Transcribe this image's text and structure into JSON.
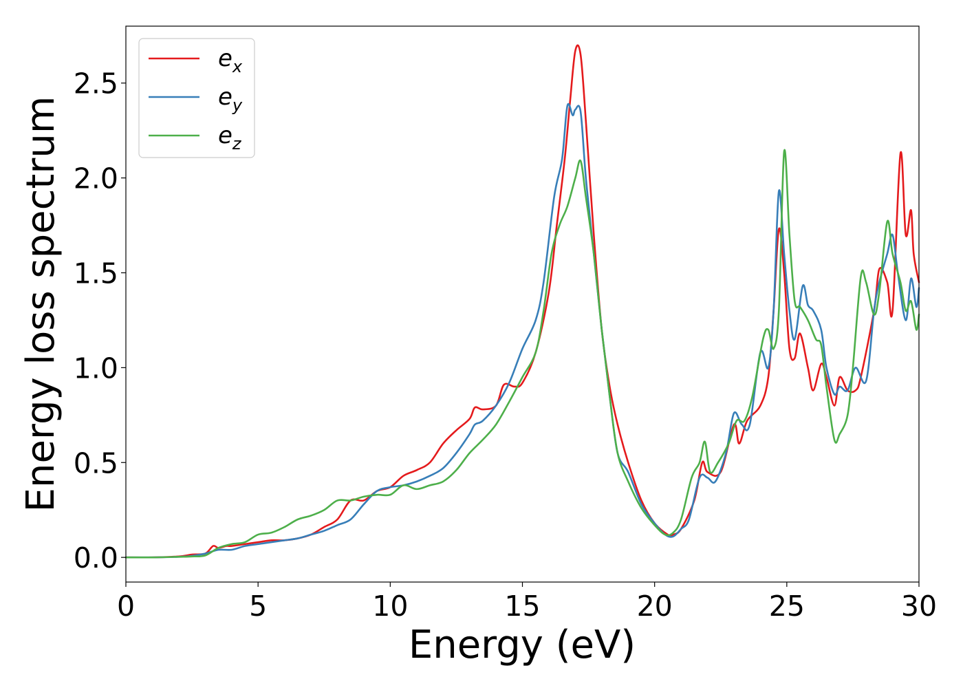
{
  "chart_data": {
    "type": "line",
    "title": "",
    "xlabel": "Energy (eV)",
    "ylabel": "Energy loss spectrum",
    "xlim": [
      0,
      30
    ],
    "ylim": [
      -0.13,
      2.8
    ],
    "xticks": [
      0,
      5,
      10,
      15,
      20,
      25,
      30
    ],
    "xtick_labels": [
      "0",
      "5",
      "10",
      "15",
      "20",
      "25",
      "30"
    ],
    "yticks": [
      0.0,
      0.5,
      1.0,
      1.5,
      2.0,
      2.5
    ],
    "ytick_labels": [
      "0.0",
      "0.5",
      "1.0",
      "1.5",
      "2.0",
      "2.5"
    ],
    "grid": false,
    "legend_position": "top-left",
    "series": [
      {
        "name": "e_x",
        "label_base": "e",
        "label_sub": "x",
        "color": "#e41a1c",
        "points": [
          [
            0,
            0
          ],
          [
            1,
            0
          ],
          [
            2,
            0.005
          ],
          [
            2.5,
            0.015
          ],
          [
            3,
            0.02
          ],
          [
            3.3,
            0.06
          ],
          [
            3.5,
            0.05
          ],
          [
            3.8,
            0.06
          ],
          [
            4,
            0.06
          ],
          [
            4.5,
            0.07
          ],
          [
            5,
            0.08
          ],
          [
            5.5,
            0.09
          ],
          [
            6,
            0.09
          ],
          [
            6.5,
            0.1
          ],
          [
            7,
            0.12
          ],
          [
            7.5,
            0.16
          ],
          [
            8,
            0.2
          ],
          [
            8.5,
            0.3
          ],
          [
            9,
            0.3
          ],
          [
            9.5,
            0.35
          ],
          [
            10,
            0.37
          ],
          [
            10.5,
            0.43
          ],
          [
            11,
            0.46
          ],
          [
            11.5,
            0.5
          ],
          [
            12,
            0.6
          ],
          [
            12.5,
            0.67
          ],
          [
            13,
            0.73
          ],
          [
            13.2,
            0.79
          ],
          [
            13.5,
            0.78
          ],
          [
            14,
            0.8
          ],
          [
            14.3,
            0.91
          ],
          [
            14.7,
            0.9
          ],
          [
            15,
            0.92
          ],
          [
            15.5,
            1.08
          ],
          [
            16,
            1.4
          ],
          [
            16.3,
            1.75
          ],
          [
            16.6,
            2.1
          ],
          [
            16.8,
            2.4
          ],
          [
            17,
            2.67
          ],
          [
            17.2,
            2.65
          ],
          [
            17.4,
            2.3
          ],
          [
            17.7,
            1.7
          ],
          [
            18,
            1.2
          ],
          [
            18.3,
            0.9
          ],
          [
            18.6,
            0.7
          ],
          [
            19,
            0.5
          ],
          [
            19.5,
            0.3
          ],
          [
            20,
            0.18
          ],
          [
            20.5,
            0.12
          ],
          [
            20.7,
            0.12
          ],
          [
            21,
            0.15
          ],
          [
            21.5,
            0.3
          ],
          [
            21.8,
            0.5
          ],
          [
            22,
            0.45
          ],
          [
            22.5,
            0.45
          ],
          [
            23,
            0.7
          ],
          [
            23.2,
            0.6
          ],
          [
            23.5,
            0.72
          ],
          [
            24,
            0.8
          ],
          [
            24.3,
            0.95
          ],
          [
            24.5,
            1.3
          ],
          [
            24.7,
            1.73
          ],
          [
            24.9,
            1.5
          ],
          [
            25.1,
            1.1
          ],
          [
            25.3,
            1.05
          ],
          [
            25.5,
            1.18
          ],
          [
            25.8,
            1.0
          ],
          [
            26,
            0.88
          ],
          [
            26.3,
            1.02
          ],
          [
            26.5,
            0.95
          ],
          [
            26.8,
            0.8
          ],
          [
            27,
            0.95
          ],
          [
            27.3,
            0.88
          ],
          [
            27.6,
            0.88
          ],
          [
            27.8,
            0.95
          ],
          [
            28.3,
            1.3
          ],
          [
            28.5,
            1.52
          ],
          [
            28.8,
            1.45
          ],
          [
            29,
            1.3
          ],
          [
            29.3,
            2.13
          ],
          [
            29.5,
            1.7
          ],
          [
            29.7,
            1.83
          ],
          [
            29.8,
            1.6
          ],
          [
            30,
            1.45
          ]
        ]
      },
      {
        "name": "e_y",
        "label_base": "e",
        "label_sub": "y",
        "color": "#377eb8",
        "points": [
          [
            0,
            0
          ],
          [
            1,
            0
          ],
          [
            2,
            0.003
          ],
          [
            2.5,
            0.008
          ],
          [
            3,
            0.02
          ],
          [
            3.5,
            0.04
          ],
          [
            4,
            0.04
          ],
          [
            4.5,
            0.06
          ],
          [
            5,
            0.07
          ],
          [
            5.5,
            0.08
          ],
          [
            6,
            0.09
          ],
          [
            6.5,
            0.1
          ],
          [
            7,
            0.12
          ],
          [
            7.5,
            0.14
          ],
          [
            8,
            0.17
          ],
          [
            8.5,
            0.2
          ],
          [
            9,
            0.28
          ],
          [
            9.5,
            0.35
          ],
          [
            10,
            0.37
          ],
          [
            10.5,
            0.38
          ],
          [
            11,
            0.4
          ],
          [
            11.5,
            0.43
          ],
          [
            12,
            0.47
          ],
          [
            12.5,
            0.55
          ],
          [
            13,
            0.65
          ],
          [
            13.2,
            0.7
          ],
          [
            13.5,
            0.72
          ],
          [
            14,
            0.8
          ],
          [
            14.5,
            0.92
          ],
          [
            15,
            1.1
          ],
          [
            15.5,
            1.25
          ],
          [
            15.8,
            1.45
          ],
          [
            16.2,
            1.9
          ],
          [
            16.5,
            2.1
          ],
          [
            16.7,
            2.38
          ],
          [
            16.9,
            2.33
          ],
          [
            17,
            2.36
          ],
          [
            17.2,
            2.35
          ],
          [
            17.4,
            2.0
          ],
          [
            17.7,
            1.6
          ],
          [
            18,
            1.2
          ],
          [
            18.3,
            0.85
          ],
          [
            18.6,
            0.55
          ],
          [
            19,
            0.45
          ],
          [
            19.5,
            0.28
          ],
          [
            20,
            0.18
          ],
          [
            20.4,
            0.12
          ],
          [
            20.7,
            0.11
          ],
          [
            21,
            0.15
          ],
          [
            21.3,
            0.2
          ],
          [
            21.7,
            0.42
          ],
          [
            22,
            0.42
          ],
          [
            22.3,
            0.4
          ],
          [
            22.7,
            0.55
          ],
          [
            23,
            0.76
          ],
          [
            23.3,
            0.7
          ],
          [
            23.6,
            0.7
          ],
          [
            24,
            1.08
          ],
          [
            24.3,
            1.0
          ],
          [
            24.5,
            1.3
          ],
          [
            24.7,
            1.93
          ],
          [
            24.9,
            1.6
          ],
          [
            25.1,
            1.3
          ],
          [
            25.3,
            1.15
          ],
          [
            25.6,
            1.43
          ],
          [
            25.8,
            1.33
          ],
          [
            26,
            1.3
          ],
          [
            26.3,
            1.2
          ],
          [
            26.5,
            1.0
          ],
          [
            26.8,
            0.86
          ],
          [
            27,
            0.9
          ],
          [
            27.3,
            0.88
          ],
          [
            27.6,
            1.0
          ],
          [
            28,
            0.93
          ],
          [
            28.3,
            1.3
          ],
          [
            28.5,
            1.45
          ],
          [
            28.8,
            1.6
          ],
          [
            29,
            1.7
          ],
          [
            29.2,
            1.5
          ],
          [
            29.5,
            1.25
          ],
          [
            29.7,
            1.47
          ],
          [
            29.9,
            1.32
          ],
          [
            30,
            1.42
          ]
        ]
      },
      {
        "name": "e_z",
        "label_base": "e",
        "label_sub": "z",
        "color": "#4daf4a",
        "points": [
          [
            0,
            0
          ],
          [
            1,
            0
          ],
          [
            2,
            0.003
          ],
          [
            2.5,
            0.005
          ],
          [
            3,
            0.01
          ],
          [
            3.5,
            0.05
          ],
          [
            4,
            0.07
          ],
          [
            4.5,
            0.08
          ],
          [
            5,
            0.12
          ],
          [
            5.5,
            0.13
          ],
          [
            6,
            0.16
          ],
          [
            6.5,
            0.2
          ],
          [
            7,
            0.22
          ],
          [
            7.5,
            0.25
          ],
          [
            8,
            0.3
          ],
          [
            8.5,
            0.3
          ],
          [
            9,
            0.32
          ],
          [
            9.5,
            0.33
          ],
          [
            10,
            0.33
          ],
          [
            10.5,
            0.38
          ],
          [
            11,
            0.36
          ],
          [
            11.5,
            0.38
          ],
          [
            12,
            0.4
          ],
          [
            12.5,
            0.46
          ],
          [
            13,
            0.55
          ],
          [
            13.5,
            0.62
          ],
          [
            14,
            0.7
          ],
          [
            14.5,
            0.82
          ],
          [
            15,
            0.95
          ],
          [
            15.5,
            1.08
          ],
          [
            15.8,
            1.3
          ],
          [
            16.1,
            1.6
          ],
          [
            16.4,
            1.75
          ],
          [
            16.7,
            1.85
          ],
          [
            17,
            2.0
          ],
          [
            17.2,
            2.09
          ],
          [
            17.4,
            1.9
          ],
          [
            17.7,
            1.6
          ],
          [
            18,
            1.2
          ],
          [
            18.3,
            0.85
          ],
          [
            18.6,
            0.55
          ],
          [
            19,
            0.4
          ],
          [
            19.5,
            0.26
          ],
          [
            20,
            0.17
          ],
          [
            20.4,
            0.12
          ],
          [
            20.7,
            0.13
          ],
          [
            21,
            0.2
          ],
          [
            21.4,
            0.42
          ],
          [
            21.7,
            0.5
          ],
          [
            21.9,
            0.61
          ],
          [
            22.1,
            0.45
          ],
          [
            22.4,
            0.5
          ],
          [
            22.8,
            0.6
          ],
          [
            23.1,
            0.72
          ],
          [
            23.4,
            0.72
          ],
          [
            23.7,
            0.85
          ],
          [
            24.1,
            1.15
          ],
          [
            24.3,
            1.2
          ],
          [
            24.5,
            1.1
          ],
          [
            24.7,
            1.3
          ],
          [
            24.9,
            2.14
          ],
          [
            25.1,
            1.7
          ],
          [
            25.3,
            1.35
          ],
          [
            25.5,
            1.32
          ],
          [
            25.8,
            1.25
          ],
          [
            26.1,
            1.15
          ],
          [
            26.3,
            1.12
          ],
          [
            26.5,
            0.9
          ],
          [
            26.8,
            0.62
          ],
          [
            27,
            0.65
          ],
          [
            27.3,
            0.75
          ],
          [
            27.5,
            1.0
          ],
          [
            27.8,
            1.48
          ],
          [
            28,
            1.45
          ],
          [
            28.3,
            1.28
          ],
          [
            28.5,
            1.4
          ],
          [
            28.8,
            1.77
          ],
          [
            29,
            1.6
          ],
          [
            29.3,
            1.45
          ],
          [
            29.5,
            1.3
          ],
          [
            29.7,
            1.35
          ],
          [
            29.9,
            1.2
          ],
          [
            30,
            1.28
          ]
        ]
      }
    ]
  }
}
